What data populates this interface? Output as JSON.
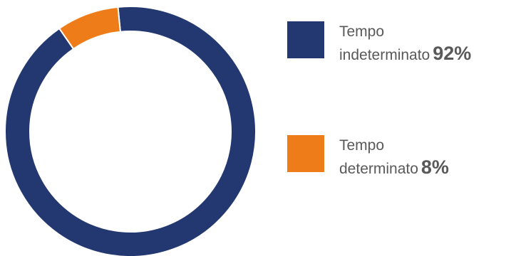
{
  "chart_data": {
    "type": "pie",
    "variant": "donut",
    "categories": [
      "Tempo indeterminato",
      "Tempo determinato"
    ],
    "values": [
      92,
      8
    ],
    "unit": "%",
    "colors": [
      "#233870",
      "#EE7D19"
    ],
    "legend_placement": "right",
    "legend": [
      {
        "line1": "Tempo",
        "line2": "indeterminato",
        "percent": "92%",
        "color": "#233870",
        "swatch_icon": "square-swatch"
      },
      {
        "line1": "Tempo",
        "line2": "determinato",
        "percent": "8%",
        "color": "#EE7D19",
        "swatch_icon": "square-swatch"
      }
    ]
  }
}
